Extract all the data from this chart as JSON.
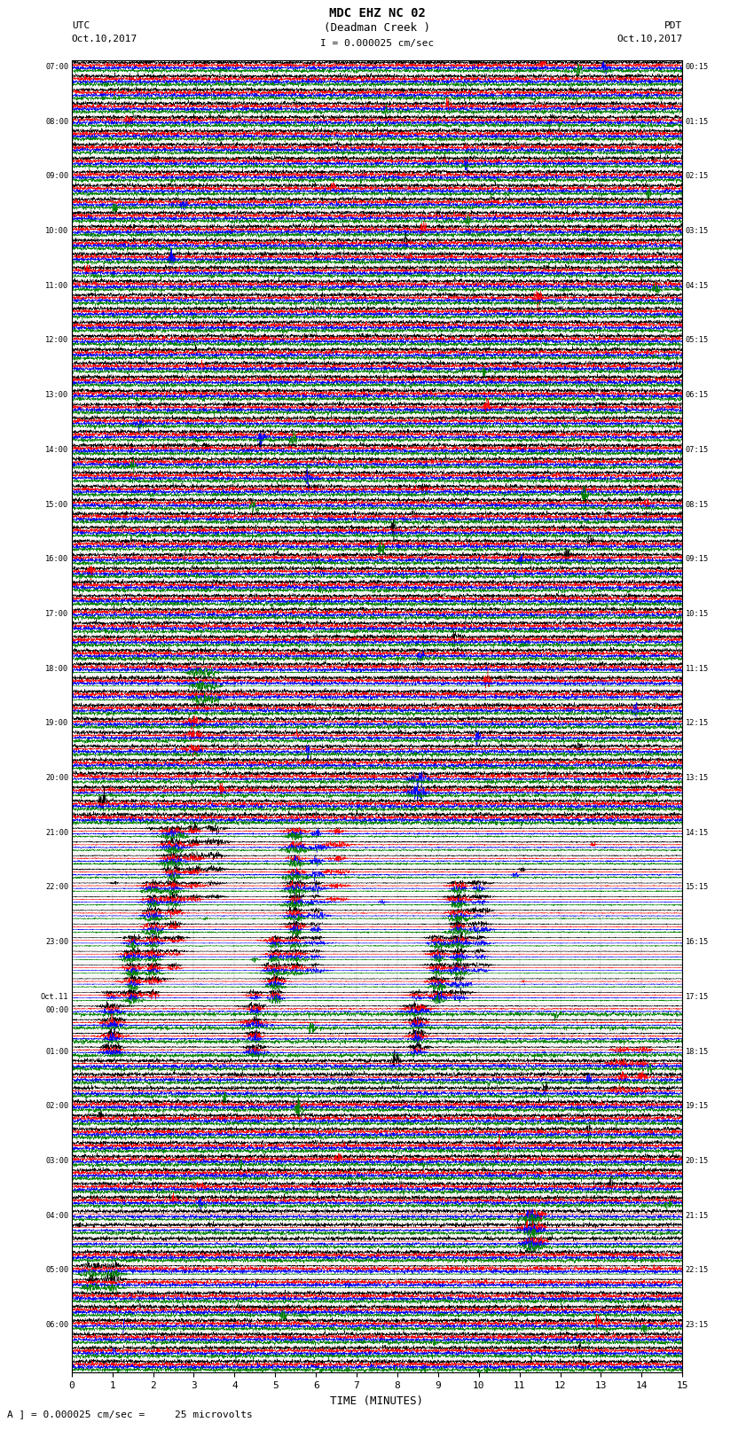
{
  "title_line1": "MDC EHZ NC 02",
  "title_line2": "(Deadman Creek )",
  "title_line3": "I = 0.000025 cm/sec",
  "left_header_line1": "UTC",
  "left_header_line2": "Oct.10,2017",
  "right_header_line1": "PDT",
  "right_header_line2": "Oct.10,2017",
  "xlabel": "TIME (MINUTES)",
  "footer": "A ] = 0.000025 cm/sec =     25 microvolts",
  "xlim": [
    0,
    15
  ],
  "xticks": [
    0,
    1,
    2,
    3,
    4,
    5,
    6,
    7,
    8,
    9,
    10,
    11,
    12,
    13,
    14,
    15
  ],
  "left_times": [
    "07:00",
    "",
    "",
    "",
    "08:00",
    "",
    "",
    "",
    "09:00",
    "",
    "",
    "",
    "10:00",
    "",
    "",
    "",
    "11:00",
    "",
    "",
    "",
    "12:00",
    "",
    "",
    "",
    "13:00",
    "",
    "",
    "",
    "14:00",
    "",
    "",
    "",
    "15:00",
    "",
    "",
    "",
    "16:00",
    "",
    "",
    "",
    "17:00",
    "",
    "",
    "",
    "18:00",
    "",
    "",
    "",
    "19:00",
    "",
    "",
    "",
    "20:00",
    "",
    "",
    "",
    "21:00",
    "",
    "",
    "",
    "22:00",
    "",
    "",
    "",
    "23:00",
    "",
    "",
    "",
    "Oct.11",
    "00:00",
    "",
    "",
    "01:00",
    "",
    "",
    "",
    "02:00",
    "",
    "",
    "",
    "03:00",
    "",
    "",
    "",
    "04:00",
    "",
    "",
    "",
    "05:00",
    "",
    "",
    "",
    "06:00",
    "",
    ""
  ],
  "right_times": [
    "00:15",
    "",
    "",
    "",
    "01:15",
    "",
    "",
    "",
    "02:15",
    "",
    "",
    "",
    "03:15",
    "",
    "",
    "",
    "04:15",
    "",
    "",
    "",
    "05:15",
    "",
    "",
    "",
    "06:15",
    "",
    "",
    "",
    "07:15",
    "",
    "",
    "",
    "08:15",
    "",
    "",
    "",
    "09:15",
    "",
    "",
    "",
    "10:15",
    "",
    "",
    "",
    "11:15",
    "",
    "",
    "",
    "12:15",
    "",
    "",
    "",
    "13:15",
    "",
    "",
    "",
    "14:15",
    "",
    "",
    "",
    "15:15",
    "",
    "",
    "",
    "16:15",
    "",
    "",
    "",
    "17:15",
    "",
    "",
    "",
    "18:15",
    "",
    "",
    "",
    "19:15",
    "",
    "",
    "",
    "20:15",
    "",
    "",
    "",
    "21:15",
    "",
    "",
    "",
    "22:15",
    "",
    "",
    "",
    "23:15",
    "",
    ""
  ],
  "trace_colors": [
    "black",
    "red",
    "blue",
    "green"
  ],
  "n_rows": 96,
  "background_color": "white",
  "figsize": [
    8.5,
    16.13
  ],
  "dpi": 100,
  "events": [
    {
      "rows": [
        44,
        45
      ],
      "ch": 3,
      "positions": [
        3.2
      ],
      "amp": 3.0
    },
    {
      "rows": [
        45,
        46
      ],
      "ch": 3,
      "positions": [
        3.2,
        3.5
      ],
      "amp": 2.5
    },
    {
      "rows": [
        48,
        49,
        50
      ],
      "ch": 1,
      "positions": [
        3.0
      ],
      "amp": 1.5
    },
    {
      "rows": [
        52,
        53
      ],
      "ch": 2,
      "positions": [
        8.5
      ],
      "amp": 1.8
    },
    {
      "rows": [
        56,
        57,
        58,
        59,
        60,
        61
      ],
      "ch": 0,
      "positions": [
        2.5,
        3.0,
        3.5
      ],
      "amp": 2.0
    },
    {
      "rows": [
        56,
        57,
        58,
        59,
        60,
        61
      ],
      "ch": 1,
      "positions": [
        2.5,
        3.0,
        5.5,
        6.5
      ],
      "amp": 2.5
    },
    {
      "rows": [
        56,
        57,
        58,
        59,
        60,
        61
      ],
      "ch": 2,
      "positions": [
        2.5,
        5.5,
        6.0
      ],
      "amp": 2.0
    },
    {
      "rows": [
        56,
        57,
        58,
        59,
        60,
        61
      ],
      "ch": 3,
      "positions": [
        2.5,
        5.5
      ],
      "amp": 1.5
    },
    {
      "rows": [
        60,
        61,
        62,
        63,
        64,
        65,
        66
      ],
      "ch": 0,
      "positions": [
        2.0,
        2.5,
        5.5,
        6.0,
        9.5,
        10.0
      ],
      "amp": 2.5
    },
    {
      "rows": [
        60,
        61,
        62,
        63,
        64,
        65,
        66
      ],
      "ch": 1,
      "positions": [
        2.0,
        2.5,
        5.5,
        9.5
      ],
      "amp": 3.0
    },
    {
      "rows": [
        60,
        61,
        62,
        63,
        64,
        65,
        66
      ],
      "ch": 2,
      "positions": [
        2.0,
        5.5,
        6.0,
        9.5,
        10.0
      ],
      "amp": 2.5
    },
    {
      "rows": [
        60,
        61,
        62,
        63,
        64,
        65,
        66
      ],
      "ch": 3,
      "positions": [
        2.0,
        5.5,
        9.5
      ],
      "amp": 2.0
    },
    {
      "rows": [
        64,
        65,
        66,
        67,
        68
      ],
      "ch": 0,
      "positions": [
        1.5,
        2.0,
        5.0,
        9.0,
        9.5
      ],
      "amp": 3.0
    },
    {
      "rows": [
        64,
        65,
        66,
        67,
        68
      ],
      "ch": 1,
      "positions": [
        1.5,
        2.0,
        5.0,
        9.0
      ],
      "amp": 3.5
    },
    {
      "rows": [
        64,
        65,
        66,
        67,
        68
      ],
      "ch": 2,
      "positions": [
        1.5,
        5.0,
        9.0,
        9.5
      ],
      "amp": 3.0
    },
    {
      "rows": [
        64,
        65,
        66,
        67,
        68
      ],
      "ch": 3,
      "positions": [
        1.5,
        5.0,
        9.0
      ],
      "amp": 2.5
    },
    {
      "rows": [
        68,
        69,
        70,
        71,
        72
      ],
      "ch": 0,
      "positions": [
        1.0,
        4.5,
        8.5
      ],
      "amp": 2.0
    },
    {
      "rows": [
        68,
        69,
        70,
        71,
        72
      ],
      "ch": 1,
      "positions": [
        1.0,
        4.5,
        8.5
      ],
      "amp": 2.0
    },
    {
      "rows": [
        68,
        69,
        70,
        71,
        72
      ],
      "ch": 2,
      "positions": [
        1.0,
        4.5,
        8.5
      ],
      "amp": 1.8
    },
    {
      "rows": [
        72,
        73,
        74,
        75
      ],
      "ch": 1,
      "positions": [
        13.5,
        14.0
      ],
      "amp": 2.0
    },
    {
      "rows": [
        84,
        85,
        86
      ],
      "ch": 1,
      "positions": [
        11.3,
        11.5
      ],
      "amp": 6.0
    },
    {
      "rows": [
        84,
        85,
        86
      ],
      "ch": 2,
      "positions": [
        11.3
      ],
      "amp": 1.5
    },
    {
      "rows": [
        84,
        85,
        86
      ],
      "ch": 3,
      "positions": [
        11.3
      ],
      "amp": 1.0
    },
    {
      "rows": [
        88,
        89
      ],
      "ch": 0,
      "positions": [
        0.5,
        1.0
      ],
      "amp": 2.0
    },
    {
      "rows": [
        88,
        89
      ],
      "ch": 3,
      "positions": [
        0.5,
        1.0
      ],
      "amp": 2.5
    }
  ]
}
